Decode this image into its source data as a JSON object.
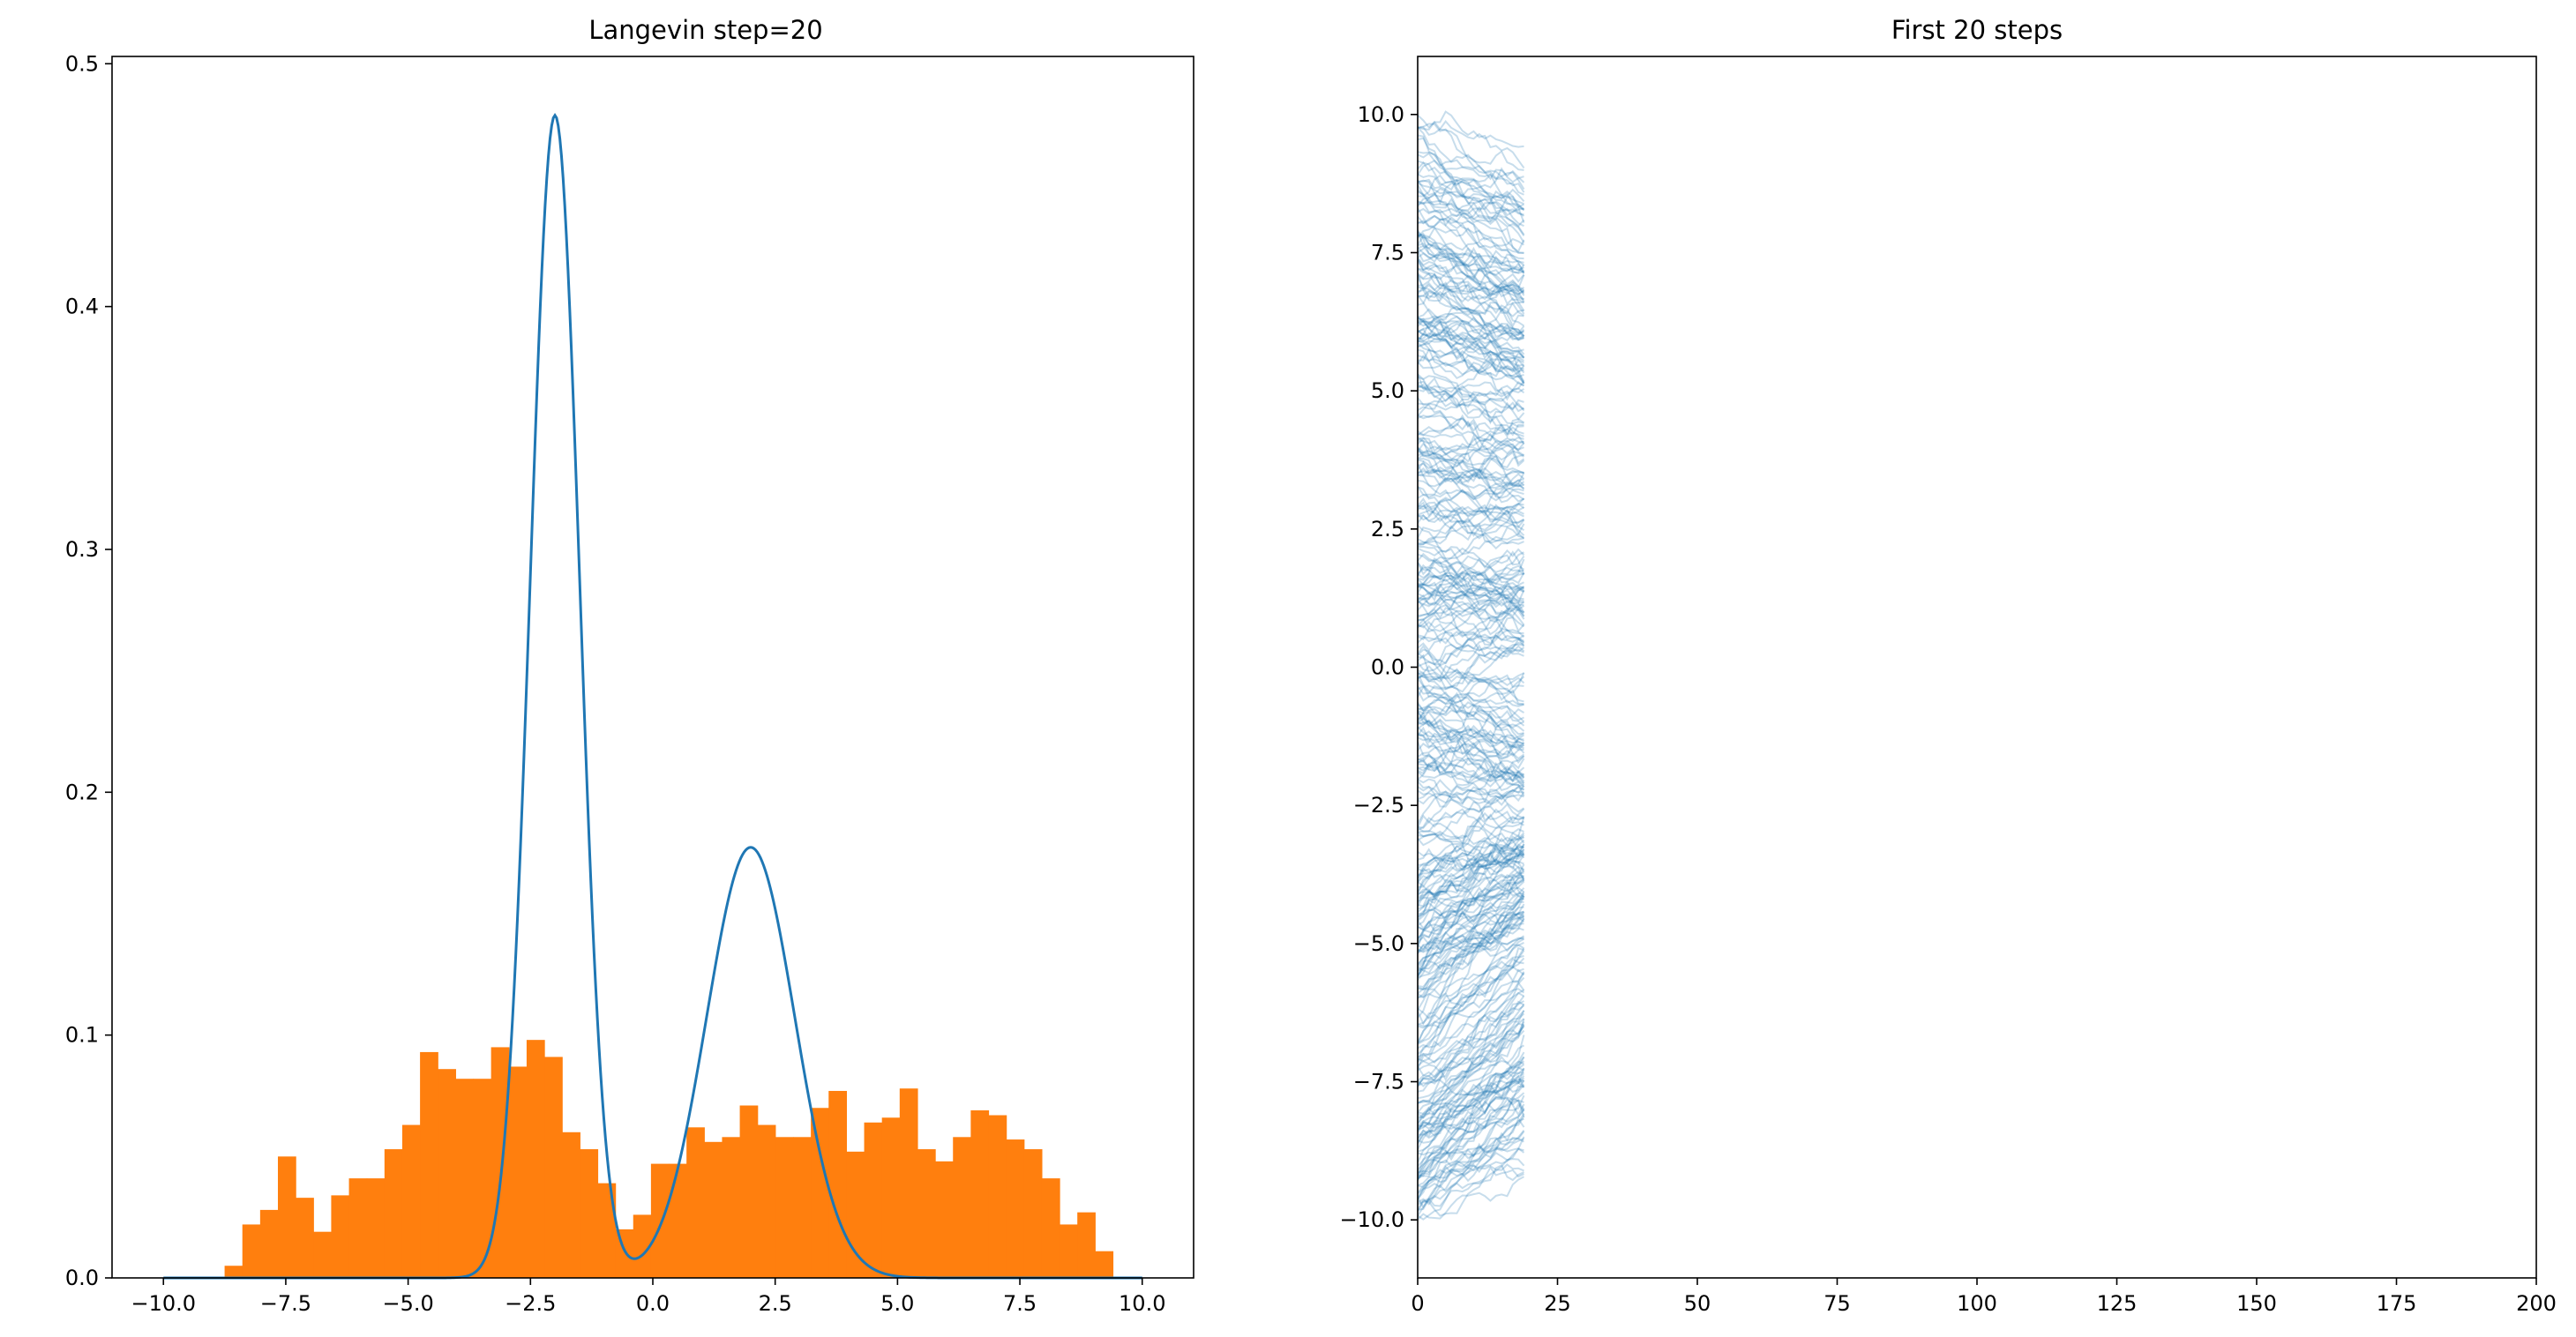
{
  "chart_data": [
    {
      "type": "bar",
      "title": "Langevin step=20",
      "xlim": [
        -11.05,
        11.05
      ],
      "ylim": [
        0,
        0.503
      ],
      "xticks": [
        -10.0,
        -7.5,
        -5.0,
        -2.5,
        0.0,
        2.5,
        5.0,
        7.5,
        10.0
      ],
      "xtick_labels": [
        "−10.0",
        "−7.5",
        "−5.0",
        "−2.5",
        "0.0",
        "2.5",
        "5.0",
        "7.5",
        "10.0"
      ],
      "yticks": [
        0.0,
        0.1,
        0.2,
        0.3,
        0.4,
        0.5
      ],
      "ytick_labels": [
        "0.0",
        "0.1",
        "0.2",
        "0.3",
        "0.4",
        "0.5"
      ],
      "grid": false,
      "histogram": {
        "name": "",
        "color": "#ff7f0e",
        "bin_start": -8.75,
        "bin_width": 0.363,
        "values": [
          0.005,
          0.022,
          0.028,
          0.05,
          0.033,
          0.019,
          0.034,
          0.041,
          0.041,
          0.053,
          0.063,
          0.093,
          0.086,
          0.082,
          0.082,
          0.095,
          0.087,
          0.098,
          0.091,
          0.06,
          0.053,
          0.039,
          0.02,
          0.026,
          0.047,
          0.047,
          0.062,
          0.056,
          0.058,
          0.071,
          0.063,
          0.058,
          0.058,
          0.07,
          0.077,
          0.052,
          0.064,
          0.066,
          0.078,
          0.053,
          0.048,
          0.058,
          0.069,
          0.067,
          0.057,
          0.053,
          0.041,
          0.022,
          0.027,
          0.011
        ]
      },
      "density_curve": {
        "name": "",
        "color": "#1f77b4",
        "description_free": true,
        "components": [
          {
            "weight": 0.6,
            "mean": -2.0,
            "std": 0.5
          },
          {
            "weight": 0.4,
            "mean": 2.0,
            "std": 0.9
          }
        ],
        "x_range": [
          -10,
          10
        ]
      }
    },
    {
      "type": "line",
      "title": "First 20 steps",
      "xlim": [
        0,
        200
      ],
      "ylim": [
        -11.05,
        11.05
      ],
      "xticks": [
        0,
        25,
        50,
        75,
        100,
        125,
        150,
        175,
        200
      ],
      "xtick_labels": [
        "0",
        "25",
        "50",
        "75",
        "100",
        "125",
        "150",
        "175",
        "200"
      ],
      "yticks": [
        -10.0,
        -7.5,
        -5.0,
        -2.5,
        0.0,
        2.5,
        5.0,
        7.5,
        10.0
      ],
      "ytick_labels": [
        "−10.0",
        "−7.5",
        "−5.0",
        "−2.5",
        "0.0",
        "2.5",
        "5.0",
        "7.5",
        "10.0"
      ],
      "grid": false,
      "trajectories": {
        "color": "#1f77b4",
        "alpha": 0.25,
        "count": 400,
        "steps": 20,
        "start_range": [
          -10,
          10
        ]
      }
    }
  ]
}
